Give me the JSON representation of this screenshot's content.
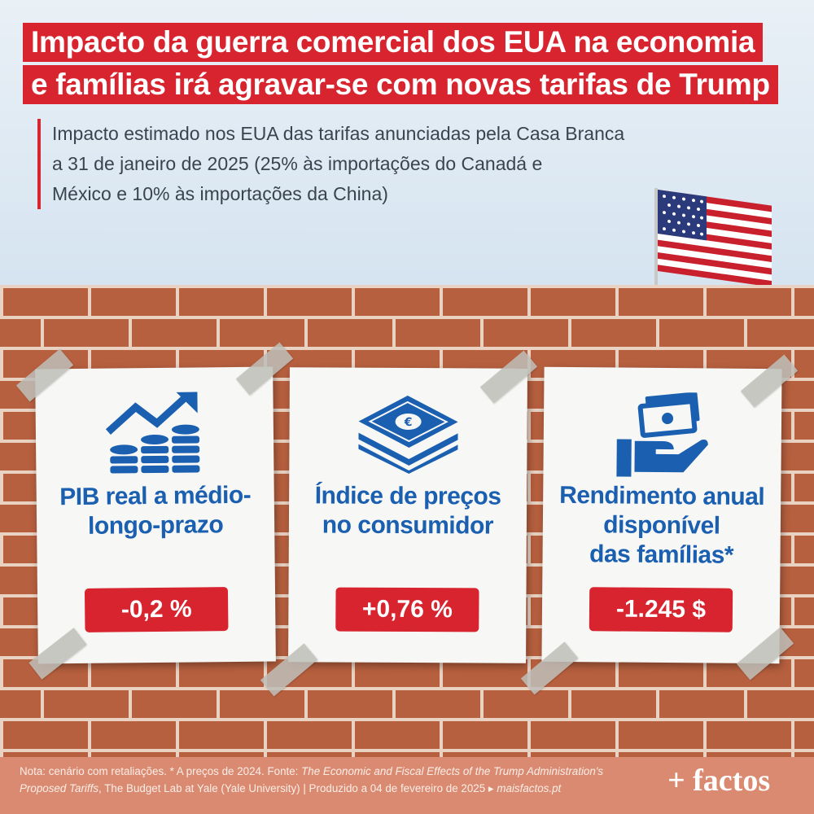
{
  "title": {
    "line1": "Impacto da guerra comercial dos EUA na economia",
    "line2": "e famílias irá agravar-se com novas tarifas de Trump"
  },
  "subtitle": {
    "line1": "Impacto estimado nos EUA das tarifas anunciadas pela Casa Branca",
    "line2": "a 31 de janeiro de 2025 (25% às importações do Canadá e",
    "line3": "México e 10% às importações da China)"
  },
  "cards": [
    {
      "label_lines": [
        "PIB real a médio-",
        "longo-prazo"
      ],
      "value": "-0,2 %",
      "icon": "gdp-growth-coins-icon"
    },
    {
      "label_lines": [
        "Índice de preços",
        "no consumidor"
      ],
      "value": "+0,76 %",
      "icon": "euro-banknotes-icon"
    },
    {
      "label_lines": [
        "Rendimento anual",
        "disponível",
        "das famílias*"
      ],
      "value": "-1.245 $",
      "icon": "hand-money-icon"
    }
  ],
  "footer": {
    "note_prefix": "Nota: cenário com retaliações. * A preços de 2024. Fonte: ",
    "note_source_title_1": "The Economic and Fiscal Effects of the Trump Administration's",
    "note_source_title_2": "Proposed Tariffs",
    "note_suffix": ", The Budget Lab at Yale (Yale University)  |  Produzido a 04 de fevereiro de 2025 ▸ ",
    "note_site": "maisfactos.pt",
    "logo": "+ factos"
  },
  "colors": {
    "accent_red": "#d7242e",
    "label_blue": "#1a5fb0",
    "brick": "#b7603f"
  },
  "decor": {
    "flag": "us-flag-icon"
  }
}
